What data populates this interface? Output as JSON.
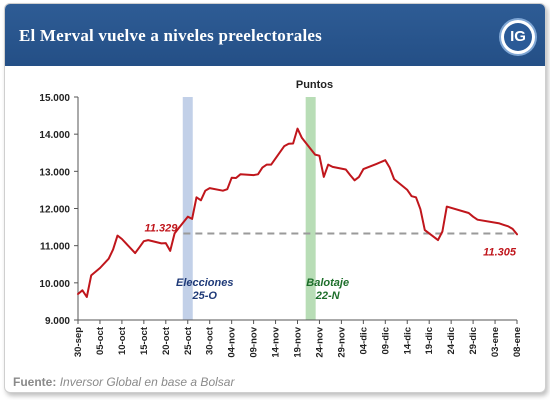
{
  "header": {
    "title": "El Merval vuelve a niveles preelectorales",
    "logo_text": "IG"
  },
  "footer": {
    "source_label": "Fuente:",
    "source_text": "Inversor Global en base a Bolsar"
  },
  "colors": {
    "header_bg": "#27528a",
    "line": "#c0161c",
    "elecciones_band": "#c2d0e8",
    "balotaje_band": "#b8ddb6",
    "elecciones_text": "#1f3a78",
    "balotaje_text": "#1d6e2a",
    "value_label": "#c0161c",
    "reference_line": "#9a9a9a"
  },
  "chart_data": {
    "type": "line",
    "title": "Puntos",
    "xlabel": "",
    "ylabel": "",
    "ylim": [
      9000,
      15000
    ],
    "ytick_labels": [
      "9.000",
      "10.000",
      "11.000",
      "12.000",
      "13.000",
      "14.000",
      "15.000"
    ],
    "ytick_values": [
      9000,
      10000,
      11000,
      12000,
      13000,
      14000,
      15000
    ],
    "x_start_date": "2015-09-30",
    "xtick_labels": [
      "30-sep",
      "05-oct",
      "10-oct",
      "15-oct",
      "20-oct",
      "25-oct",
      "30-oct",
      "04-nov",
      "09-nov",
      "14-nov",
      "19-nov",
      "24-nov",
      "29-nov",
      "04-dic",
      "09-dic",
      "14-dic",
      "19-dic",
      "24-dic",
      "29-dic",
      "03-ene",
      "08-ene"
    ],
    "series": [
      {
        "name": "Merval",
        "x": [
          "2015-09-30",
          "2015-10-01",
          "2015-10-02",
          "2015-10-03",
          "2015-10-05",
          "2015-10-07",
          "2015-10-08",
          "2015-10-09",
          "2015-10-10",
          "2015-10-13",
          "2015-10-14",
          "2015-10-15",
          "2015-10-16",
          "2015-10-19",
          "2015-10-20",
          "2015-10-21",
          "2015-10-22",
          "2015-10-23",
          "2015-10-25",
          "2015-10-26",
          "2015-10-27",
          "2015-10-28",
          "2015-10-29",
          "2015-10-30",
          "2015-11-02",
          "2015-11-03",
          "2015-11-04",
          "2015-11-05",
          "2015-11-06",
          "2015-11-09",
          "2015-11-10",
          "2015-11-11",
          "2015-11-12",
          "2015-11-13",
          "2015-11-16",
          "2015-11-17",
          "2015-11-18",
          "2015-11-19",
          "2015-11-20",
          "2015-11-23",
          "2015-11-24",
          "2015-11-25",
          "2015-11-26",
          "2015-11-27",
          "2015-11-30",
          "2015-12-01",
          "2015-12-02",
          "2015-12-03",
          "2015-12-04",
          "2015-12-07",
          "2015-12-09",
          "2015-12-10",
          "2015-12-11",
          "2015-12-14",
          "2015-12-15",
          "2015-12-16",
          "2015-12-17",
          "2015-12-18",
          "2015-12-21",
          "2015-12-22",
          "2015-12-23",
          "2015-12-28",
          "2015-12-29",
          "2015-12-30",
          "2016-01-04",
          "2016-01-05",
          "2016-01-06",
          "2016-01-07",
          "2016-01-08"
        ],
        "values": [
          9700,
          9800,
          9620,
          10200,
          10400,
          10650,
          10900,
          11270,
          11180,
          10800,
          10960,
          11120,
          11150,
          11060,
          11070,
          10860,
          11330,
          11480,
          11780,
          11720,
          12300,
          12220,
          12480,
          12550,
          12480,
          12520,
          12830,
          12820,
          12920,
          12900,
          12920,
          13100,
          13180,
          13180,
          13680,
          13740,
          13750,
          14150,
          13900,
          13450,
          13420,
          12850,
          13180,
          13120,
          13050,
          12900,
          12760,
          12850,
          13060,
          13200,
          13300,
          13100,
          12790,
          12500,
          12330,
          12300,
          11980,
          11420,
          11150,
          11380,
          12050,
          11880,
          11780,
          11700,
          11600,
          11560,
          11520,
          11450,
          11305
        ]
      }
    ],
    "reference_line": {
      "value": 11329,
      "label": "11.329",
      "style": "dashed"
    },
    "end_label": "11.305",
    "events": [
      {
        "date": "2015-10-25",
        "label_line1": "Elecciones",
        "label_line2": "25-O"
      },
      {
        "date": "2015-11-22",
        "label_line1": "Balotaje",
        "label_line2": "22-N"
      }
    ],
    "grid": false,
    "legend": "none"
  }
}
